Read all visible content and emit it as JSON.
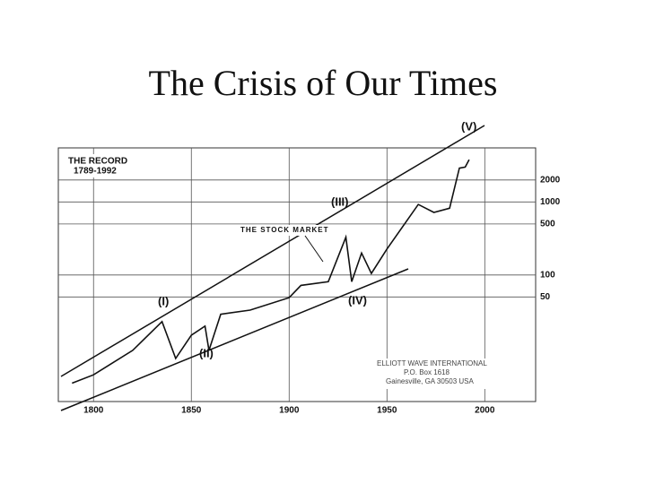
{
  "chart_data": {
    "type": "line",
    "title": "The Crisis of Our Times",
    "subtitle": "THE RECORD",
    "period": "1789-1992",
    "series_label": "THE STOCK MARKET",
    "annotations": [
      "(I)",
      "(II)",
      "(III)",
      "(IV)",
      "(V)"
    ],
    "credit": [
      "ELLIOTT WAVE INTERNATIONAL",
      "P.O. Box 1618",
      "Gainesville, GA 30503 USA"
    ],
    "x": [
      1789,
      1800,
      1810,
      1820,
      1835,
      1842,
      1850,
      1857,
      1859,
      1865,
      1880,
      1900,
      1906,
      1920,
      1929,
      1932,
      1937,
      1942,
      1950,
      1966,
      1974,
      1982,
      1987,
      1990,
      1992
    ],
    "series": [
      {
        "name": "THE STOCK MARKET",
        "color": "#111111",
        "values": [
          3.3,
          4.3,
          6.3,
          9.3,
          23,
          7.2,
          15,
          20,
          9.3,
          29,
          33,
          49,
          72,
          81,
          330,
          81,
          200,
          105,
          227,
          925,
          720,
          820,
          2900,
          3000,
          3800
        ]
      }
    ],
    "xlim": [
      1782,
      2026
    ],
    "ylim": [
      1.85,
      5500
    ],
    "log_y": true,
    "xticks": [
      1800,
      1850,
      1900,
      1950,
      2000
    ],
    "yticks": [
      50,
      100,
      500,
      1000,
      2000
    ],
    "grid": true
  }
}
